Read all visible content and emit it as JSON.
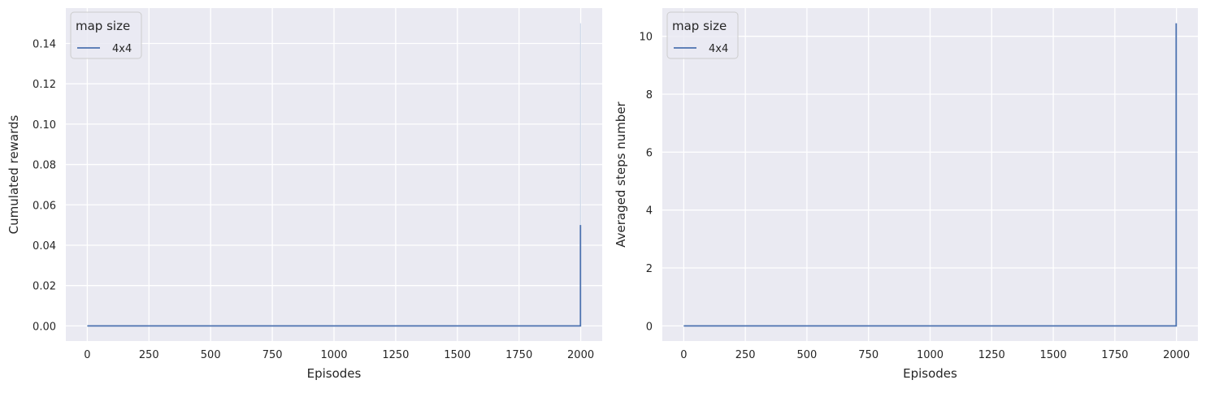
{
  "chart_data": [
    {
      "type": "line",
      "title": "",
      "xlabel": "Episodes",
      "ylabel": "Cumulated rewards",
      "xlim": [
        -87,
        2087
      ],
      "ylim": [
        -0.0075,
        0.1575
      ],
      "xticks": [
        0,
        250,
        500,
        750,
        1000,
        1250,
        1500,
        1750,
        2000
      ],
      "yticks": [
        0.0,
        0.02,
        0.04,
        0.06,
        0.08,
        0.1,
        0.12,
        0.14
      ],
      "ytick_labels": [
        "0.00",
        "0.02",
        "0.04",
        "0.06",
        "0.08",
        "0.10",
        "0.12",
        "0.14"
      ],
      "grid": true,
      "legend": {
        "title": "map size",
        "placement": "top-left"
      },
      "series": [
        {
          "name": "4x4",
          "color": "#4c72b0",
          "x": [
            0,
            1998,
            1999,
            1999
          ],
          "y": [
            0,
            0,
            0,
            0.05
          ],
          "band": {
            "x": 1999,
            "low": 0,
            "high": 0.15
          }
        }
      ]
    },
    {
      "type": "line",
      "title": "",
      "xlabel": "Episodes",
      "ylabel": "Averaged steps number",
      "xlim": [
        -87,
        2087
      ],
      "ylim": [
        -0.5225,
        10.9725
      ],
      "xticks": [
        0,
        250,
        500,
        750,
        1000,
        1250,
        1500,
        1750,
        2000
      ],
      "yticks": [
        0,
        2,
        4,
        6,
        8,
        10
      ],
      "ytick_labels": [
        "0",
        "2",
        "4",
        "6",
        "8",
        "10"
      ],
      "grid": true,
      "legend": {
        "title": "map size",
        "placement": "top-left"
      },
      "series": [
        {
          "name": "4x4",
          "color": "#4c72b0",
          "x": [
            0,
            1998,
            1999,
            1999
          ],
          "y": [
            0,
            0,
            0,
            10.45
          ]
        }
      ]
    }
  ]
}
